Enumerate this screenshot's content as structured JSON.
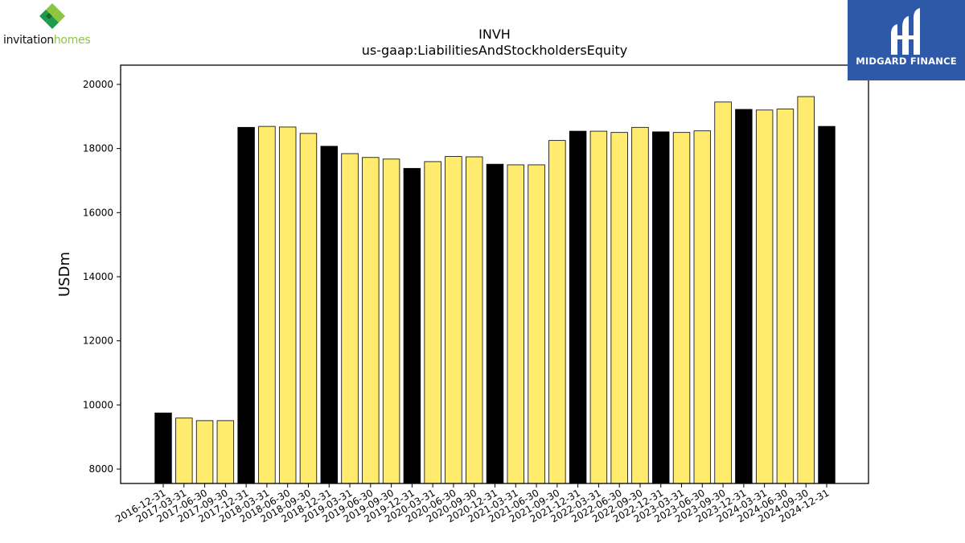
{
  "logos": {
    "left": {
      "word1": "invitation",
      "word2": "homes"
    },
    "right": {
      "name": "MIDGARD FINANCE"
    }
  },
  "colors": {
    "bar_yellow": "#ffec6e",
    "bar_black": "#000000",
    "logo_green_light": "#8cc63f",
    "logo_green_dark": "#1e9a4a",
    "midgard_blue": "#2d59a8"
  },
  "chart_data": {
    "type": "bar",
    "title": "INVH",
    "subtitle": "us-gaap:LiabilitiesAndStockholdersEquity",
    "xlabel": "",
    "ylabel": "USDm",
    "ylim": [
      7550,
      20600
    ],
    "yticks": [
      8000,
      10000,
      12000,
      14000,
      16000,
      18000,
      20000
    ],
    "grid": false,
    "categories": [
      "2016-12-31",
      "2017-03-31",
      "2017-06-30",
      "2017-09-30",
      "2017-12-31",
      "2018-03-31",
      "2018-06-30",
      "2018-09-30",
      "2018-12-31",
      "2019-03-31",
      "2019-06-30",
      "2019-09-30",
      "2019-12-31",
      "2020-03-31",
      "2020-06-30",
      "2020-09-30",
      "2020-12-31",
      "2021-03-31",
      "2021-06-30",
      "2021-09-30",
      "2021-12-31",
      "2022-03-31",
      "2022-06-30",
      "2022-09-30",
      "2022-12-31",
      "2023-03-31",
      "2023-06-30",
      "2023-09-30",
      "2023-12-31",
      "2024-03-31",
      "2024-06-30",
      "2024-09-30",
      "2024-12-31"
    ],
    "values": [
      9750,
      9590,
      9510,
      9510,
      18660,
      18690,
      18670,
      18470,
      18070,
      17840,
      17720,
      17670,
      17380,
      17590,
      17750,
      17740,
      17510,
      17490,
      17490,
      18250,
      18540,
      18540,
      18500,
      18660,
      18520,
      18500,
      18550,
      19450,
      19220,
      19200,
      19230,
      19620,
      18690
    ],
    "fill_colors": [
      "#000000",
      "#ffec6e",
      "#ffec6e",
      "#ffec6e",
      "#000000",
      "#ffec6e",
      "#ffec6e",
      "#ffec6e",
      "#000000",
      "#ffec6e",
      "#ffec6e",
      "#ffec6e",
      "#000000",
      "#ffec6e",
      "#ffec6e",
      "#ffec6e",
      "#000000",
      "#ffec6e",
      "#ffec6e",
      "#ffec6e",
      "#000000",
      "#ffec6e",
      "#ffec6e",
      "#ffec6e",
      "#000000",
      "#ffec6e",
      "#ffec6e",
      "#ffec6e",
      "#000000",
      "#ffec6e",
      "#ffec6e",
      "#ffec6e",
      "#000000"
    ]
  }
}
